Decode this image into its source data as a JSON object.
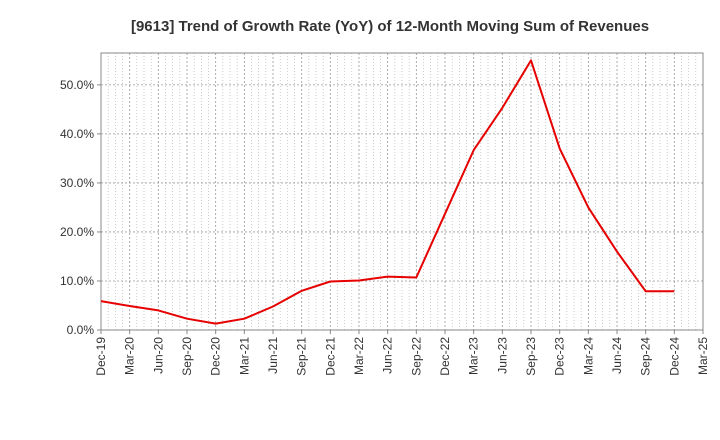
{
  "chart_data": {
    "type": "line",
    "title": "[9613]  Trend of Growth Rate (YoY) of 12-Month Moving Sum of Revenues",
    "xlabel": "",
    "ylabel": "",
    "categories": [
      "Dec-19",
      "Mar-20",
      "Jun-20",
      "Sep-20",
      "Dec-20",
      "Mar-21",
      "Jun-21",
      "Sep-21",
      "Dec-21",
      "Mar-22",
      "Jun-22",
      "Sep-22",
      "Dec-22",
      "Mar-23",
      "Jun-23",
      "Sep-23",
      "Dec-23",
      "Mar-24",
      "Jun-24",
      "Sep-24",
      "Dec-24",
      "Mar-25"
    ],
    "y_ticks": [
      "0.0%",
      "10.0%",
      "20.0%",
      "30.0%",
      "40.0%",
      "50.0%"
    ],
    "ylim": [
      0,
      56.5
    ],
    "grid": true,
    "series": [
      {
        "color": "#e60000",
        "values": [
          5.9,
          4.9,
          4.0,
          2.3,
          1.3,
          2.3,
          4.8,
          8.0,
          9.9,
          10.1,
          10.9,
          10.7,
          23.7,
          36.7,
          45.3,
          55.0,
          37.0,
          25.0,
          16.0,
          7.9,
          7.9,
          null
        ]
      }
    ]
  }
}
